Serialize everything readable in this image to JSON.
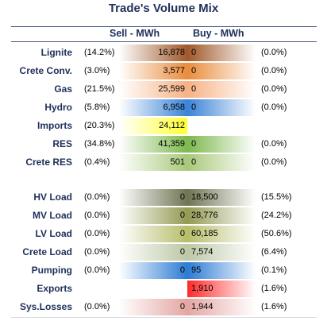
{
  "title": "Trade's Volume Mix",
  "header": {
    "sell": "Sell - MWh",
    "buy": "Buy - MWh"
  },
  "chart_data": {
    "type": "table",
    "title": "Trade's Volume Mix",
    "columns": [
      "Sell - MWh",
      "Buy - MWh"
    ],
    "rows": [
      {
        "label": "Lignite",
        "sell_pct": "(14.2%)",
        "sell": "16,878",
        "buy": "0",
        "buy_pct": "(0.0%)",
        "color": "#a0582a"
      },
      {
        "label": "Crete Conv.",
        "sell_pct": "(3.0%)",
        "sell": "3,577",
        "buy": "0",
        "buy_pct": "(0.0%)",
        "color": "#e98c3c"
      },
      {
        "label": "Gas",
        "sell_pct": "(21.5%)",
        "sell": "25,599",
        "buy": "0",
        "buy_pct": "(0.0%)",
        "color": "#f7b184"
      },
      {
        "label": "Hydro",
        "sell_pct": "(5.8%)",
        "sell": "6,958",
        "buy": "0",
        "buy_pct": "(0.0%)",
        "color": "#3a83d6"
      },
      {
        "label": "Imports",
        "sell_pct": "(20.3%)",
        "sell": "24,112",
        "buy": "",
        "buy_pct": "",
        "color": "#ffff33"
      },
      {
        "label": "RES",
        "sell_pct": "(34.8%)",
        "sell": "41,359",
        "buy": "0",
        "buy_pct": "(0.0%)",
        "color": "#7db84d"
      },
      {
        "label": "Crete RES",
        "sell_pct": "(0.4%)",
        "sell": "501",
        "buy": "0",
        "buy_pct": "(0.0%)",
        "color": "#a8c97a"
      },
      {
        "label": "HV Load",
        "sell_pct": "(0.0%)",
        "sell": "0",
        "buy": "18,500",
        "buy_pct": "(15.5%)",
        "color": "#6e7552"
      },
      {
        "label": "MV Load",
        "sell_pct": "(0.0%)",
        "sell": "0",
        "buy": "28,776",
        "buy_pct": "(24.2%)",
        "color": "#939a52"
      },
      {
        "label": "LV Load",
        "sell_pct": "(0.0%)",
        "sell": "0",
        "buy": "60,185",
        "buy_pct": "(50.6%)",
        "color": "#b8bd6a"
      },
      {
        "label": "Crete Load",
        "sell_pct": "(0.0%)",
        "sell": "0",
        "buy": "7,574",
        "buy_pct": "(6.4%)",
        "color": "#bcc8a6"
      },
      {
        "label": "Pumping",
        "sell_pct": "(0.0%)",
        "sell": "0",
        "buy": "95",
        "buy_pct": "(0.1%)",
        "color": "#2b7bd4"
      },
      {
        "label": "Exports",
        "sell_pct": "",
        "sell": "",
        "buy": "1,910",
        "buy_pct": "(1.6%)",
        "color": "#ff2a2a"
      },
      {
        "label": "Sys.Losses",
        "sell_pct": "(0.0%)",
        "sell": "0",
        "buy": "1,944",
        "buy_pct": "(1.6%)",
        "color": "#e4a6a2"
      }
    ]
  }
}
